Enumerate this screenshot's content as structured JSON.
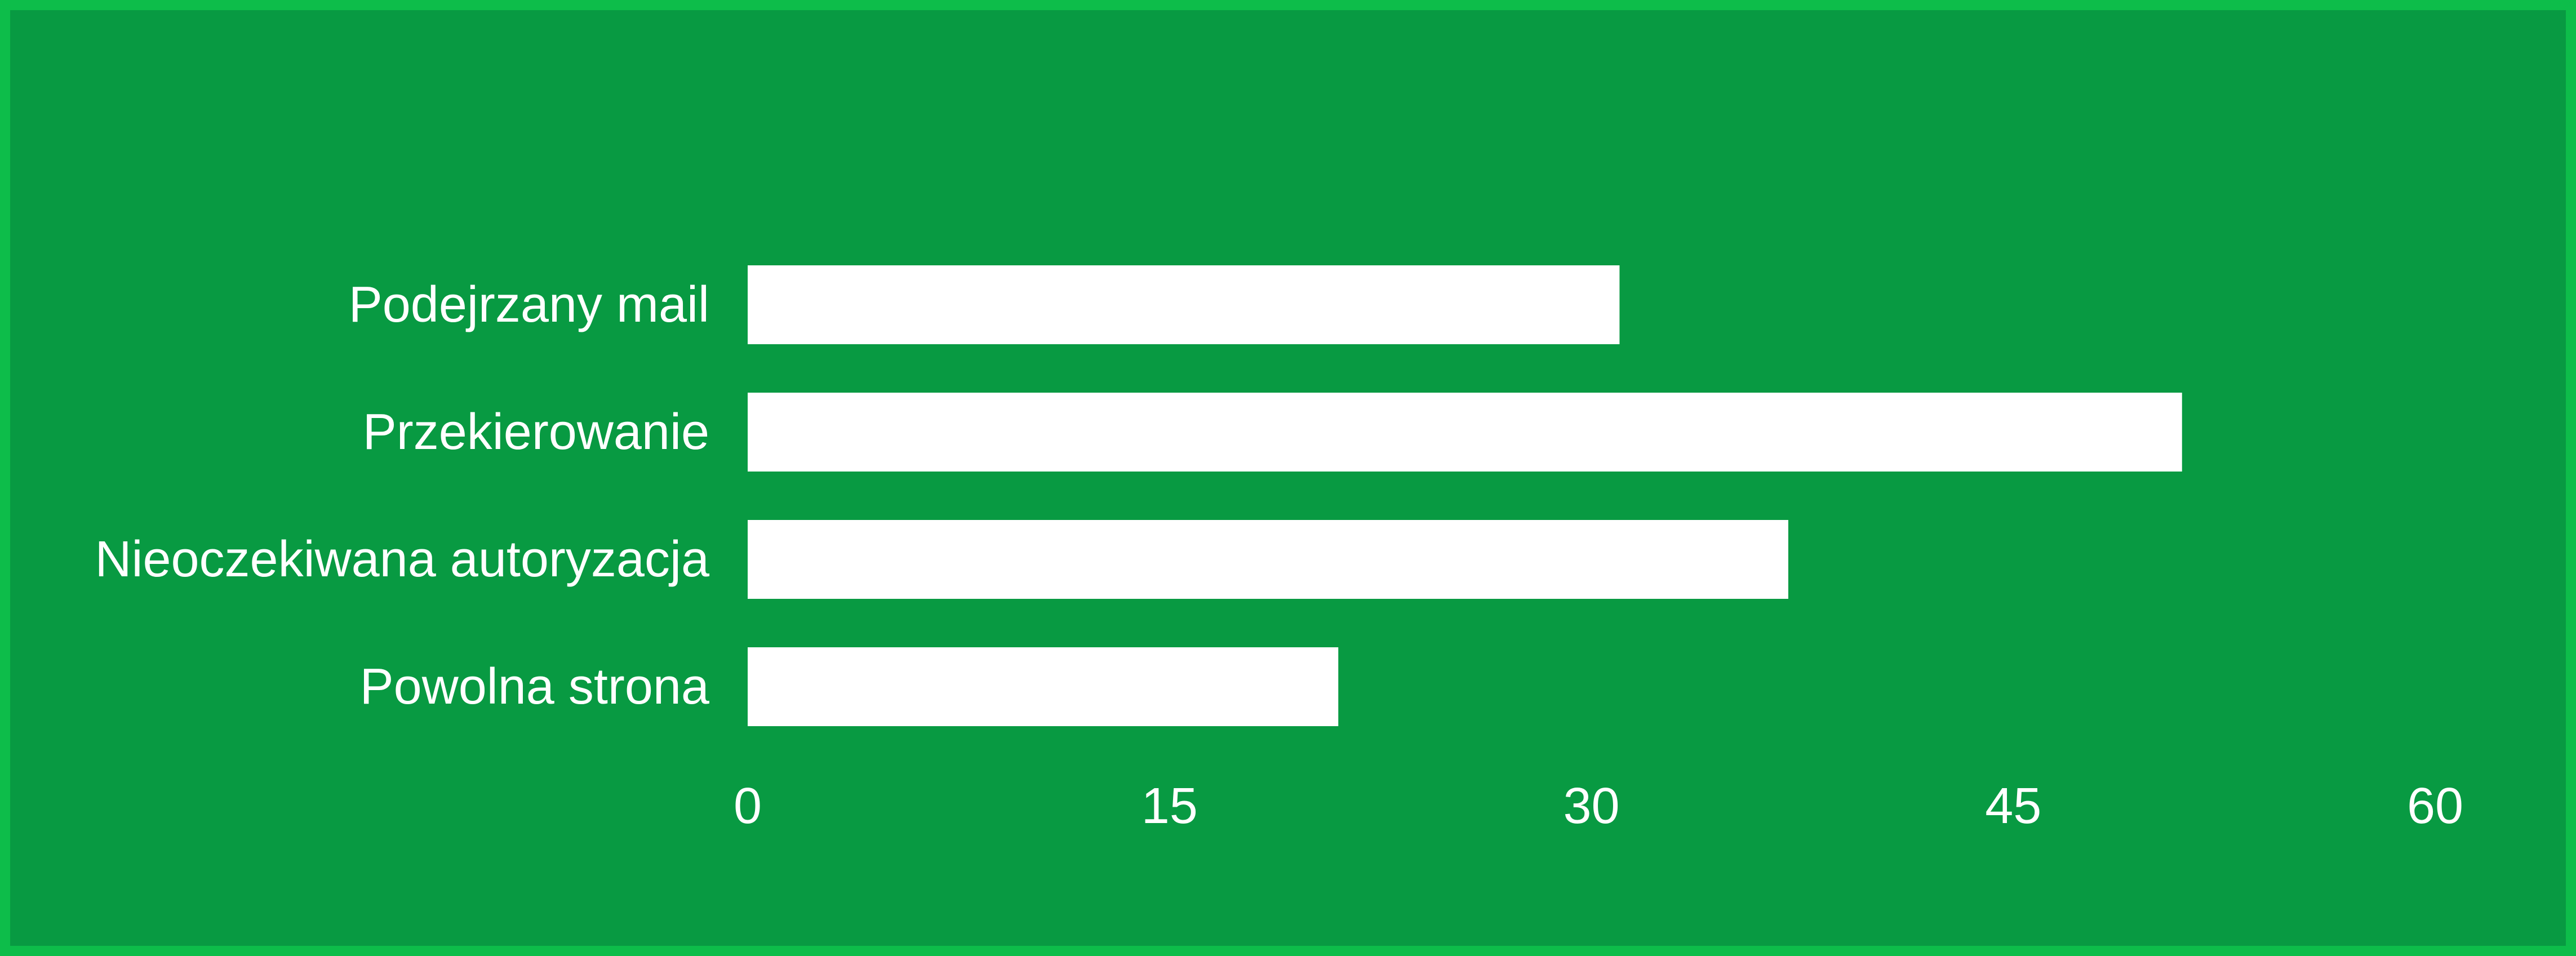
{
  "chart_data": {
    "type": "bar",
    "orientation": "horizontal",
    "title": "",
    "xlabel": "",
    "ylabel": "",
    "categories": [
      "Podejrzany mail",
      "Przekierowanie",
      "Nieoczekiwana autoryzacja",
      "Powolna strona"
    ],
    "values": [
      31,
      51,
      37,
      21
    ],
    "xlim": [
      0,
      60
    ],
    "xticks": [
      "0",
      "15",
      "30",
      "45",
      "60"
    ],
    "grid": false,
    "legend": "none",
    "colors": {
      "background": "#089a42",
      "border": "#0dbd4a",
      "bar": "#ffffff",
      "text": "#ffffff"
    }
  }
}
